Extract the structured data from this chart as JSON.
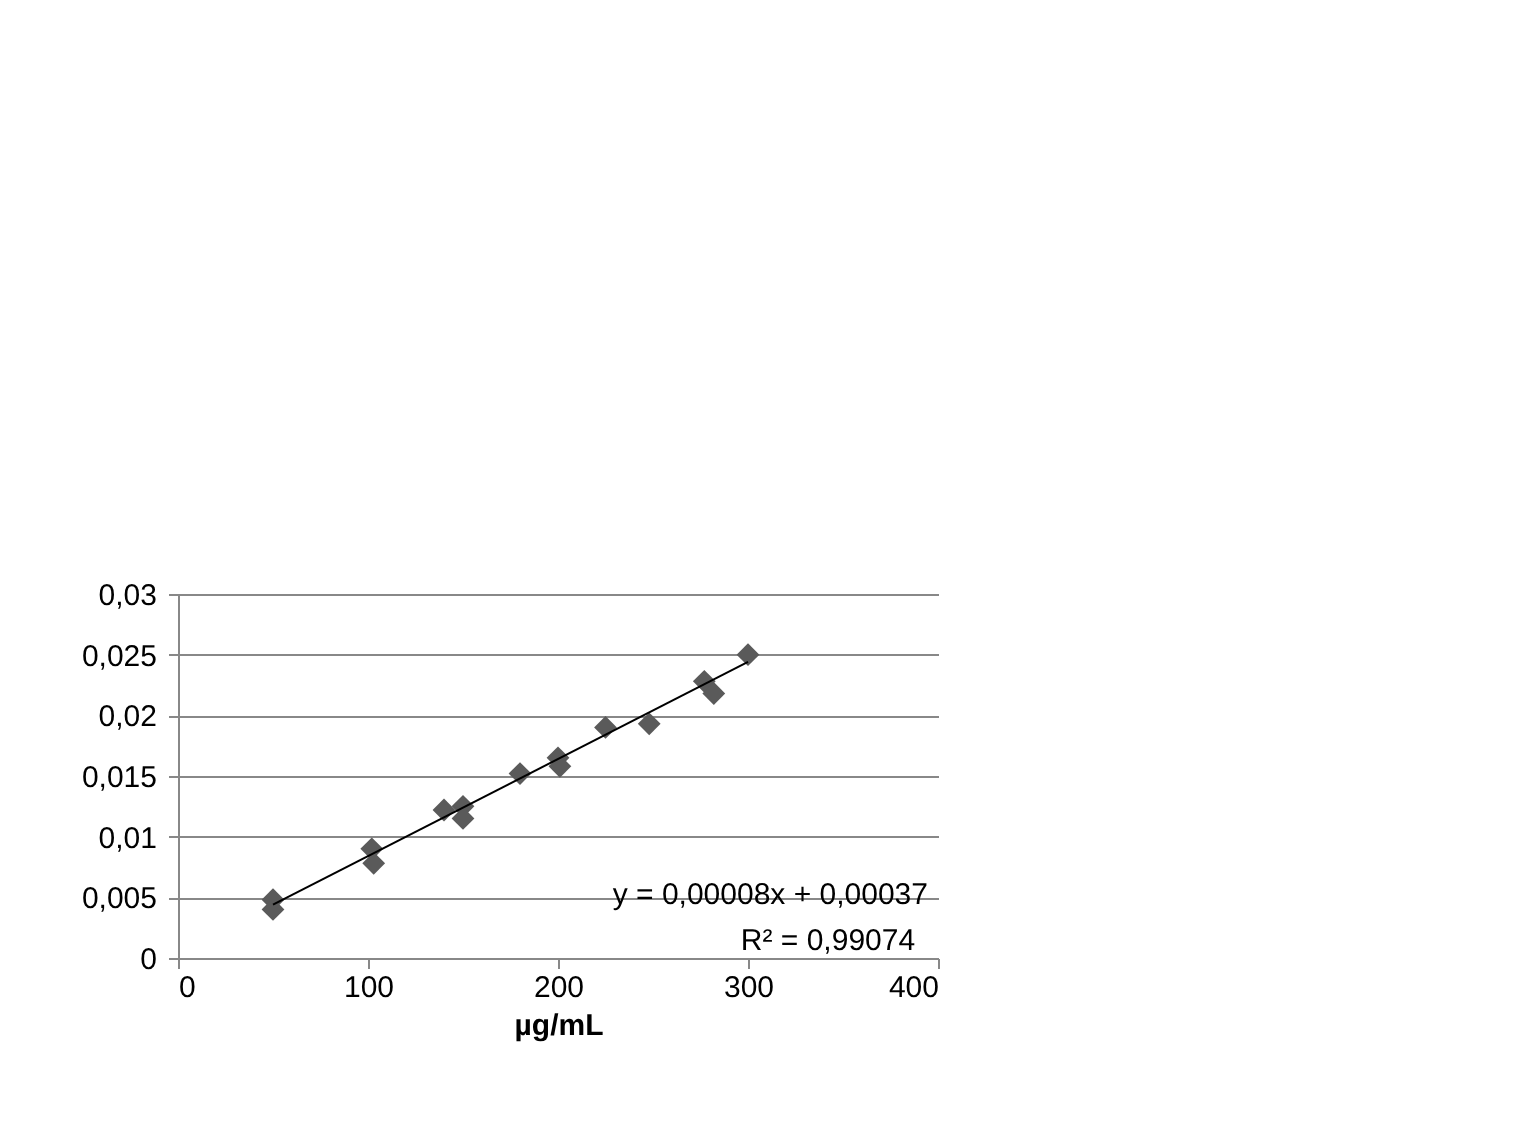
{
  "chart_data": {
    "type": "scatter",
    "xlabel": "µg/mL",
    "xlim": [
      0,
      400
    ],
    "xticks": [
      0,
      100,
      200,
      300,
      400
    ],
    "ylim": [
      0,
      0.03
    ],
    "yticks": [
      {
        "value": 0,
        "label": "0"
      },
      {
        "value": 0.005,
        "label": "0,005"
      },
      {
        "value": 0.01,
        "label": "0,01"
      },
      {
        "value": 0.015,
        "label": "0,015"
      },
      {
        "value": 0.02,
        "label": "0,02"
      },
      {
        "value": 0.025,
        "label": "0,025"
      },
      {
        "value": 0.03,
        "label": "0,03"
      }
    ],
    "grid": "y",
    "series": [
      {
        "color": "#5a5a5a",
        "marker": "diamond",
        "x": [
          50,
          50,
          102,
          103,
          140,
          150,
          150,
          180,
          200,
          201,
          225,
          248,
          277,
          282,
          300
        ],
        "values": [
          0.0048,
          0.004,
          0.009,
          0.0078,
          0.0122,
          0.0125,
          0.0115,
          0.0152,
          0.0165,
          0.0158,
          0.019,
          0.0193,
          0.0228,
          0.0218,
          0.025
        ]
      },
      {
        "type": "line",
        "color": "#000000",
        "line_style": "solid",
        "x": [
          50,
          300
        ],
        "values": [
          0.0044,
          0.0244
        ]
      }
    ],
    "annotations": [
      "y = 0,00008x + 0,00037",
      "R² = 0,99074"
    ]
  }
}
